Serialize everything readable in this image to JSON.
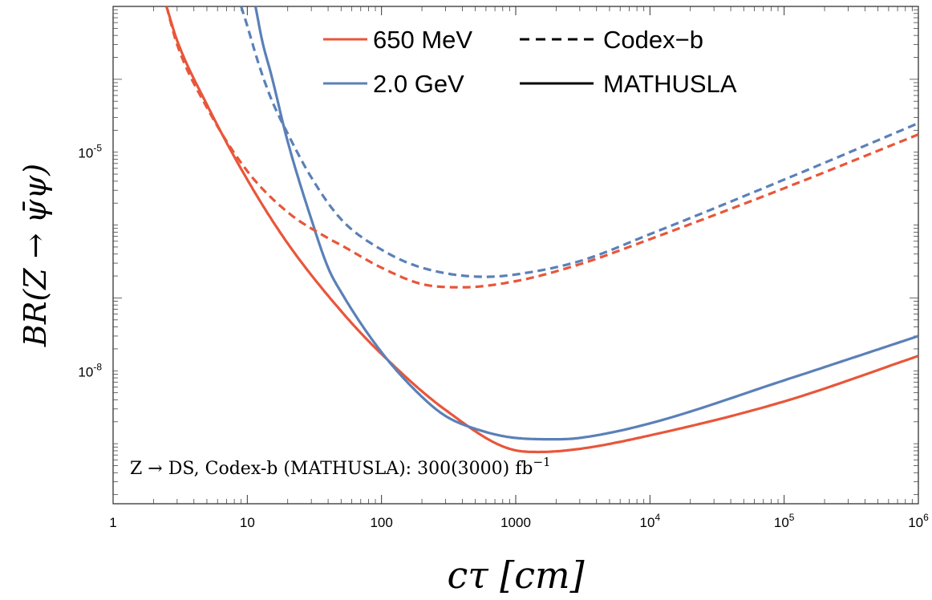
{
  "chart_data": {
    "type": "line",
    "xlabel": "cτ [cm]",
    "ylabel": "BR(Z → ψ̄ψ)",
    "x_scale": "log",
    "y_scale": "log",
    "xlim": [
      1,
      1000000
    ],
    "ylim": [
      1.5e-10,
      0.001
    ],
    "grid": false,
    "legend_position": "top-right",
    "x_ticks": [
      {
        "value": 1,
        "label": "1",
        "sup": ""
      },
      {
        "value": 10,
        "label": "10",
        "sup": ""
      },
      {
        "value": 100,
        "label": "100",
        "sup": ""
      },
      {
        "value": 1000,
        "label": "1000",
        "sup": ""
      },
      {
        "value": 10000,
        "label": "10",
        "sup": "4"
      },
      {
        "value": 100000,
        "label": "10",
        "sup": "5"
      },
      {
        "value": 1000000,
        "label": "10",
        "sup": "6"
      }
    ],
    "y_ticks": [
      {
        "value": 1e-05,
        "label": "10",
        "sup": "-5"
      },
      {
        "value": 1e-08,
        "label": "10",
        "sup": "-8"
      }
    ],
    "annotation": "Z → DS, Codex-b (MATHUSLA): 300(3000) fb",
    "annotation_sup": "−1",
    "legend": {
      "masses": [
        {
          "label": "650 MeV",
          "color": "#e8563a"
        },
        {
          "label": "2.0 GeV",
          "color": "#5b80b8"
        }
      ],
      "styles": [
        {
          "label": "Codex−b",
          "dash": "dashed"
        },
        {
          "label": "MATHUSLA",
          "dash": "solid"
        }
      ]
    },
    "series": [
      {
        "mass": "650 MeV",
        "experiment": "MATHUSLA",
        "color": "#e8563a",
        "dash": "solid",
        "x": [
          2.5,
          3,
          5,
          10,
          20,
          50,
          100,
          300,
          1000,
          1500,
          3000,
          10000,
          100000,
          1000000
        ],
        "y": [
          0.001,
          0.00034,
          4.5e-05,
          4.2e-06,
          5.6e-07,
          6.6e-08,
          1.7e-08,
          2.9e-09,
          8.1e-10,
          7.7e-10,
          8.5e-10,
          1.3e-09,
          3.8e-09,
          1.6e-08
        ]
      },
      {
        "mass": "2.0 GeV",
        "experiment": "MATHUSLA",
        "color": "#5b80b8",
        "dash": "solid",
        "x": [
          11.5,
          13,
          15,
          20,
          30,
          40,
          50,
          100,
          200,
          300,
          500,
          1000,
          2000,
          3000,
          10000,
          100000,
          1000000
        ],
        "y": [
          0.001,
          0.00032,
          0.00012,
          1.4e-05,
          1.2e-06,
          2.6e-07,
          1.2e-07,
          1.8e-08,
          4.4e-09,
          2.4e-09,
          1.6e-09,
          1.2e-09,
          1.15e-09,
          1.2e-09,
          1.9e-09,
          7.4e-09,
          3e-08
        ]
      },
      {
        "mass": "650 MeV",
        "experiment": "Codex-b",
        "color": "#e8563a",
        "dash": "dashed",
        "x": [
          2.5,
          3,
          5,
          10,
          20,
          40,
          50,
          100,
          200,
          400,
          1000,
          3000,
          10000,
          100000,
          1000000
        ],
        "y": [
          0.001,
          0.0003,
          4.1e-05,
          5.5e-06,
          1.5e-06,
          6.6e-07,
          5.3e-07,
          2.6e-07,
          1.55e-07,
          1.4e-07,
          1.7e-07,
          2.9e-07,
          6.4e-07,
          3.2e-06,
          1.75e-05
        ]
      },
      {
        "mass": "2.0 GeV",
        "experiment": "Codex-b",
        "color": "#5b80b8",
        "dash": "dashed",
        "x": [
          9,
          10,
          12,
          15,
          20,
          30,
          50,
          100,
          200,
          600,
          1000,
          3000,
          10000,
          100000,
          1000000
        ],
        "y": [
          0.001,
          0.00054,
          0.000175,
          5.5e-05,
          1.8e-05,
          4.5e-06,
          1.2e-06,
          4.6e-07,
          2.6e-07,
          1.95e-07,
          2.1e-07,
          3.2e-07,
          7.5e-07,
          4.2e-06,
          2.5e-05
        ]
      }
    ]
  }
}
